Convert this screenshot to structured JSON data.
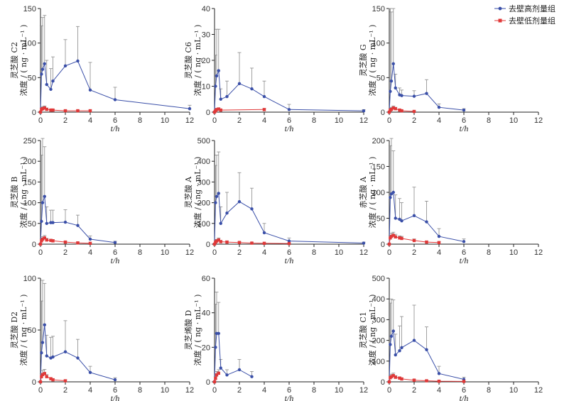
{
  "legend": {
    "high": "去壁高剂量组",
    "low": "去壁低剂量组"
  },
  "colors": {
    "high": "#3a4fa8",
    "low": "#e03838",
    "errorbar": "#8a8a8a"
  },
  "xlabel": "t/h",
  "ylabel_unit": "浓度 / ( ng · mL⁻¹ )",
  "chart_data": [
    {
      "type": "line",
      "title_y": "灵芝酸 C2",
      "xlim": [
        0,
        12
      ],
      "ylim": [
        0,
        150
      ],
      "xticks": [
        0,
        2,
        4,
        6,
        8,
        10,
        12
      ],
      "yticks": [
        0,
        50,
        100,
        150
      ],
      "series": [
        {
          "name": "去壁高剂量组",
          "x": [
            0,
            0.08,
            0.17,
            0.33,
            0.5,
            0.83,
            1,
            2,
            3,
            4,
            6,
            12
          ],
          "y": [
            0,
            55,
            62,
            70,
            40,
            33,
            45,
            67,
            74,
            32,
            18,
            5
          ],
          "err": [
            0,
            70,
            75,
            70,
            35,
            30,
            35,
            38,
            50,
            40,
            18,
            5
          ]
        },
        {
          "name": "去壁低剂量组",
          "x": [
            0,
            0.08,
            0.17,
            0.33,
            0.5,
            0.83,
            1,
            2,
            3,
            4
          ],
          "y": [
            0,
            4,
            5,
            6,
            4,
            3,
            3,
            2,
            2,
            2
          ],
          "err": [
            0,
            2,
            3,
            3,
            2,
            1,
            1,
            1,
            1,
            1
          ]
        }
      ]
    },
    {
      "type": "line",
      "title_y": "灵芝酸 C6",
      "xlim": [
        0,
        12
      ],
      "ylim": [
        0,
        40
      ],
      "xticks": [
        0,
        2,
        4,
        6,
        8,
        10,
        12
      ],
      "yticks": [
        0,
        10,
        20,
        30,
        40
      ],
      "series": [
        {
          "name": "去壁高剂量组",
          "x": [
            0,
            0.08,
            0.17,
            0.33,
            0.5,
            1,
            2,
            3,
            4,
            6,
            12
          ],
          "y": [
            0,
            10,
            14,
            16,
            5,
            6,
            11,
            9,
            6,
            1,
            0.5
          ],
          "err": [
            0,
            12,
            18,
            16,
            4,
            6,
            12,
            8,
            6,
            2,
            0.5
          ]
        },
        {
          "name": "去壁低剂量组",
          "x": [
            0,
            0.08,
            0.17,
            0.33,
            0.5,
            4
          ],
          "y": [
            0,
            0.5,
            1,
            1.2,
            0.8,
            1
          ],
          "err": [
            0,
            0.3,
            0.4,
            0.5,
            0.3,
            0.4
          ]
        }
      ]
    },
    {
      "type": "line",
      "title_y": "灵芝酸 G",
      "xlim": [
        0,
        12
      ],
      "ylim": [
        0,
        150
      ],
      "xticks": [
        0,
        2,
        4,
        6,
        8,
        10,
        12
      ],
      "yticks": [
        0,
        50,
        100,
        150
      ],
      "series": [
        {
          "name": "去壁高剂量组",
          "x": [
            0,
            0.08,
            0.17,
            0.33,
            0.5,
            0.83,
            1,
            2,
            3,
            4,
            6
          ],
          "y": [
            0,
            30,
            45,
            70,
            35,
            25,
            24,
            23,
            27,
            7,
            3
          ],
          "err": [
            0,
            120,
            100,
            80,
            20,
            10,
            8,
            8,
            20,
            5,
            2
          ]
        },
        {
          "name": "去壁低剂量组",
          "x": [
            0,
            0.08,
            0.17,
            0.33,
            0.5,
            0.83,
            1,
            2
          ],
          "y": [
            0,
            3,
            4,
            6,
            5,
            3,
            2,
            1
          ],
          "err": [
            0,
            2,
            3,
            3,
            2,
            1,
            1,
            1
          ]
        }
      ]
    },
    {
      "type": "line",
      "title_y": "灵芝酸 B",
      "xlim": [
        0,
        12
      ],
      "ylim": [
        0,
        250
      ],
      "xticks": [
        0,
        2,
        4,
        6,
        8,
        10,
        12
      ],
      "yticks": [
        0,
        50,
        100,
        150,
        200,
        250
      ],
      "series": [
        {
          "name": "去壁高剂量组",
          "x": [
            0,
            0.08,
            0.17,
            0.33,
            0.5,
            0.83,
            1,
            2,
            3,
            4,
            6
          ],
          "y": [
            0,
            55,
            100,
            115,
            50,
            52,
            52,
            53,
            45,
            12,
            4
          ],
          "err": [
            0,
            160,
            170,
            120,
            40,
            30,
            30,
            30,
            25,
            8,
            3
          ]
        },
        {
          "name": "去壁低剂量组",
          "x": [
            0,
            0.08,
            0.17,
            0.33,
            0.5,
            0.83,
            1,
            2,
            3,
            4
          ],
          "y": [
            0,
            8,
            12,
            15,
            10,
            9,
            8,
            5,
            3,
            2
          ],
          "err": [
            0,
            5,
            6,
            6,
            4,
            3,
            3,
            2,
            2,
            1
          ]
        }
      ]
    },
    {
      "type": "line",
      "title_y": "灵芝酸 A",
      "xlim": [
        0,
        12
      ],
      "ylim": [
        0,
        500
      ],
      "xticks": [
        0,
        2,
        4,
        6,
        8,
        10,
        12
      ],
      "yticks": [
        0,
        100,
        200,
        300,
        400,
        500
      ],
      "series": [
        {
          "name": "去壁高剂量组",
          "x": [
            0,
            0.08,
            0.17,
            0.33,
            0.5,
            1,
            2,
            3,
            4,
            6,
            12
          ],
          "y": [
            0,
            200,
            230,
            245,
            100,
            150,
            205,
            170,
            55,
            15,
            5
          ],
          "err": [
            0,
            180,
            200,
            200,
            80,
            100,
            140,
            100,
            45,
            15,
            5
          ]
        },
        {
          "name": "去壁低剂量组",
          "x": [
            0,
            0.08,
            0.17,
            0.33,
            0.5,
            1,
            2,
            3,
            4,
            6
          ],
          "y": [
            0,
            10,
            15,
            20,
            12,
            10,
            8,
            5,
            4,
            3
          ],
          "err": [
            0,
            6,
            8,
            10,
            6,
            5,
            4,
            3,
            2,
            2
          ]
        }
      ]
    },
    {
      "type": "line",
      "title_y": "赤芝酸 A",
      "xlim": [
        0,
        12
      ],
      "ylim": [
        0,
        200
      ],
      "xticks": [
        0,
        2,
        4,
        6,
        8,
        10,
        12
      ],
      "yticks": [
        0,
        50,
        100,
        150,
        200
      ],
      "series": [
        {
          "name": "去壁高剂量组",
          "x": [
            0,
            0.08,
            0.17,
            0.33,
            0.5,
            0.83,
            1,
            2,
            3,
            4,
            6
          ],
          "y": [
            0,
            90,
            97,
            100,
            50,
            48,
            45,
            55,
            43,
            15,
            5
          ],
          "err": [
            0,
            100,
            110,
            80,
            45,
            40,
            35,
            55,
            40,
            15,
            5
          ]
        },
        {
          "name": "去壁低剂量组",
          "x": [
            0,
            0.08,
            0.17,
            0.33,
            0.5,
            0.83,
            1,
            2,
            3,
            4
          ],
          "y": [
            0,
            12,
            15,
            17,
            14,
            12,
            11,
            7,
            4,
            3
          ],
          "err": [
            0,
            5,
            6,
            6,
            5,
            4,
            4,
            3,
            2,
            2
          ]
        }
      ]
    },
    {
      "type": "line",
      "title_y": "灵芝酸 D2",
      "xlim": [
        0,
        12
      ],
      "ylim": [
        0,
        100
      ],
      "xticks": [
        0,
        2,
        4,
        6,
        8,
        10,
        12
      ],
      "yticks": [
        0,
        50,
        100
      ],
      "series": [
        {
          "name": "去壁高剂量组",
          "x": [
            0,
            0.08,
            0.17,
            0.33,
            0.5,
            0.83,
            1,
            2,
            3,
            4,
            6
          ],
          "y": [
            0,
            28,
            38,
            55,
            25,
            23,
            24,
            29,
            23,
            9,
            2
          ],
          "err": [
            0,
            50,
            60,
            40,
            20,
            20,
            20,
            30,
            18,
            6,
            2
          ]
        },
        {
          "name": "去壁低剂量组",
          "x": [
            0,
            0.08,
            0.17,
            0.33,
            0.5,
            0.83,
            1,
            2
          ],
          "y": [
            0,
            5,
            7,
            8,
            5,
            3,
            2,
            1
          ],
          "err": [
            0,
            3,
            4,
            4,
            2,
            1,
            1,
            1
          ]
        }
      ]
    },
    {
      "type": "line",
      "title_y": "灵芝烯酸 D",
      "xlim": [
        0,
        12
      ],
      "ylim": [
        0,
        60
      ],
      "xticks": [
        0,
        2,
        4,
        6,
        8,
        10,
        12
      ],
      "yticks": [
        0,
        20,
        40,
        60
      ],
      "series": [
        {
          "name": "去壁高剂量组",
          "x": [
            0,
            0.08,
            0.17,
            0.33,
            0.5,
            1,
            2,
            3
          ],
          "y": [
            0,
            20,
            28,
            28,
            8,
            4,
            7,
            3
          ],
          "err": [
            0,
            25,
            24,
            18,
            5,
            3,
            6,
            3
          ]
        },
        {
          "name": "去壁低剂量组",
          "x": [
            0,
            0.08,
            0.17,
            0.33
          ],
          "y": [
            0,
            2,
            4,
            5
          ],
          "err": [
            0,
            1,
            2,
            2
          ]
        }
      ]
    },
    {
      "type": "line",
      "title_y": "灵芝酸 C1",
      "xlim": [
        0,
        12
      ],
      "ylim": [
        0,
        500
      ],
      "xticks": [
        0,
        2,
        4,
        6,
        8,
        10,
        12
      ],
      "yticks": [
        0,
        100,
        200,
        300,
        400,
        500
      ],
      "series": [
        {
          "name": "去壁高剂量组",
          "x": [
            0,
            0.08,
            0.17,
            0.33,
            0.5,
            0.83,
            1,
            2,
            3,
            4,
            6
          ],
          "y": [
            0,
            180,
            220,
            245,
            130,
            150,
            165,
            200,
            155,
            40,
            12
          ],
          "err": [
            0,
            200,
            180,
            150,
            100,
            120,
            150,
            170,
            110,
            35,
            10
          ]
        },
        {
          "name": "去壁低剂量组",
          "x": [
            0,
            0.08,
            0.17,
            0.33,
            0.5,
            0.83,
            1,
            2,
            3,
            4,
            6
          ],
          "y": [
            0,
            20,
            25,
            30,
            22,
            18,
            14,
            8,
            5,
            3,
            2
          ],
          "err": [
            0,
            10,
            12,
            12,
            8,
            6,
            5,
            4,
            3,
            2,
            1
          ]
        }
      ]
    }
  ]
}
